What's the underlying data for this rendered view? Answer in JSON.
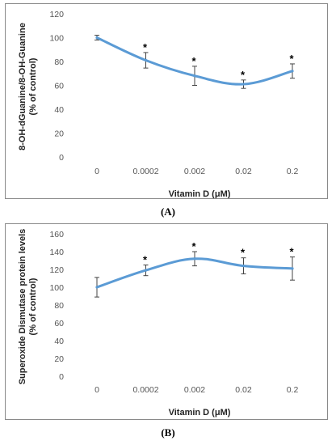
{
  "chart_data": [
    {
      "type": "line",
      "panel": "(A)",
      "ylabel_line1": "8-OH-dGuanine/8-OH-Guanine",
      "ylabel_line2": "(% of control)",
      "xlabel": "Vitamin D (μM)",
      "categories": [
        "0",
        "0.0002",
        "0.002",
        "0.02",
        "0.2"
      ],
      "yticks": [
        "0",
        "20",
        "40",
        "60",
        "80",
        "100",
        "120"
      ],
      "ylim": [
        0,
        120
      ],
      "series": [
        {
          "values": [
            100,
            81,
            68,
            61,
            72
          ],
          "errors": [
            2,
            6.5,
            8,
            3.5,
            6
          ],
          "significant": [
            false,
            true,
            true,
            true,
            true
          ],
          "color": "#5b9bd5"
        }
      ],
      "significance_mark": "*",
      "grid": false
    },
    {
      "type": "line",
      "panel": "(B)",
      "ylabel_line1": "Superoxide Dismutase protein levels",
      "ylabel_line2": "(% of control)",
      "xlabel": "Vitamin D (μM)",
      "categories": [
        "0",
        "0.0002",
        "0.002",
        "0.02",
        "0.2"
      ],
      "yticks": [
        "0",
        "20",
        "40",
        "60",
        "80",
        "100",
        "120",
        "140",
        "160"
      ],
      "ylim": [
        0,
        160
      ],
      "series": [
        {
          "values": [
            100,
            119,
            132,
            124,
            121
          ],
          "errors": [
            11,
            6,
            8,
            9,
            13
          ],
          "significant": [
            false,
            true,
            true,
            true,
            true
          ],
          "color": "#5b9bd5"
        }
      ],
      "significance_mark": "*",
      "grid": false
    }
  ]
}
